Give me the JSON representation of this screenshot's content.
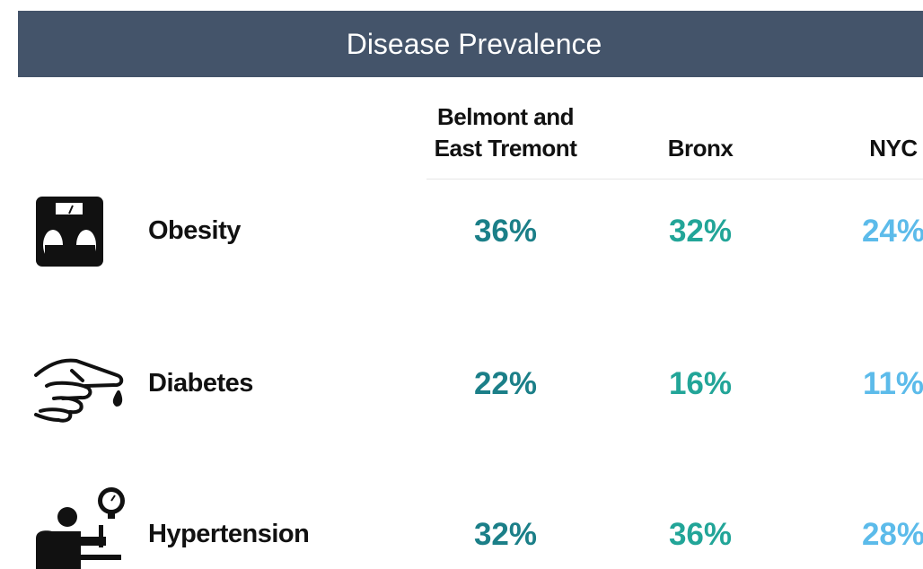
{
  "title": "Disease Prevalence",
  "table": {
    "columns": [
      "Belmont and East Tremont",
      "Bronx",
      "NYC"
    ],
    "rows": [
      {
        "label": "Obesity",
        "values": [
          "36%",
          "32%",
          "24%"
        ]
      },
      {
        "label": "Diabetes",
        "values": [
          "22%",
          "16%",
          "11%"
        ]
      },
      {
        "label": "Hypertension",
        "values": [
          "32%",
          "36%",
          "28%"
        ]
      }
    ]
  }
}
